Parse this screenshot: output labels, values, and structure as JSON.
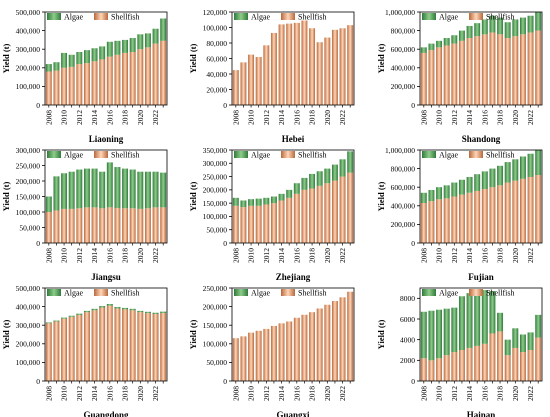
{
  "colors": {
    "algae": "#4f9a59",
    "shellfish": "#e9a37a",
    "algae_grad": [
      "#2f7a3c",
      "#8fcc8a"
    ],
    "shellfish_grad": [
      "#b8693c",
      "#ffd6b8"
    ]
  },
  "chart_data": [
    {
      "type": "bar",
      "stacked": true,
      "title": "Liaoning",
      "xlabel": "",
      "ylabel": "Yield (t)",
      "categories": [
        "2008",
        "2009",
        "2010",
        "2011",
        "2012",
        "2013",
        "2014",
        "2015",
        "2016",
        "2017",
        "2018",
        "2019",
        "2020",
        "2021",
        "2022",
        "2023"
      ],
      "x_tick_labels": [
        "2008",
        "2010",
        "2012",
        "2014",
        "2016",
        "2018",
        "2020",
        "2022"
      ],
      "y_ticks": [
        0,
        100000,
        200000,
        300000,
        400000,
        500000
      ],
      "y_tick_labels": [
        "0",
        "100,000",
        "200,000",
        "300,000",
        "400,000",
        "500,000"
      ],
      "ylim": [
        0,
        500000
      ],
      "legend": "top-left",
      "grid": false,
      "series": [
        {
          "name": "Shellfish",
          "values": [
            180000,
            185000,
            200000,
            205000,
            220000,
            225000,
            235000,
            245000,
            260000,
            270000,
            280000,
            285000,
            300000,
            310000,
            330000,
            345000
          ]
        },
        {
          "name": "Algae",
          "values": [
            40000,
            45000,
            80000,
            65000,
            65000,
            70000,
            70000,
            70000,
            80000,
            75000,
            70000,
            75000,
            80000,
            75000,
            80000,
            120000
          ]
        }
      ]
    },
    {
      "type": "bar",
      "stacked": true,
      "title": "Hebei",
      "xlabel": "",
      "ylabel": "Yield (t)",
      "categories": [
        "2008",
        "2009",
        "2010",
        "2011",
        "2012",
        "2013",
        "2014",
        "2015",
        "2016",
        "2017",
        "2018",
        "2019",
        "2020",
        "2021",
        "2022",
        "2023"
      ],
      "x_tick_labels": [
        "2008",
        "2010",
        "2012",
        "2014",
        "2016",
        "2018",
        "2020",
        "2022"
      ],
      "y_ticks": [
        0,
        20000,
        40000,
        60000,
        80000,
        100000,
        120000
      ],
      "y_tick_labels": [
        "0",
        "20,000",
        "40,000",
        "60,000",
        "80,000",
        "100,000",
        "120,000"
      ],
      "ylim": [
        0,
        120000
      ],
      "legend": "top-left",
      "grid": false,
      "series": [
        {
          "name": "Shellfish",
          "values": [
            45000,
            55000,
            65000,
            62000,
            77000,
            93000,
            104000,
            105000,
            106000,
            109000,
            99000,
            81000,
            87000,
            97000,
            99000,
            103000
          ]
        },
        {
          "name": "Algae",
          "values": [
            0,
            0,
            0,
            0,
            0,
            0,
            0,
            0,
            0,
            0,
            0,
            0,
            0,
            0,
            0,
            0
          ]
        }
      ]
    },
    {
      "type": "bar",
      "stacked": true,
      "title": "Shandong",
      "xlabel": "",
      "ylabel": "Yield (t)",
      "categories": [
        "2008",
        "2009",
        "2010",
        "2011",
        "2012",
        "2013",
        "2014",
        "2015",
        "2016",
        "2017",
        "2018",
        "2019",
        "2020",
        "2021",
        "2022",
        "2023"
      ],
      "x_tick_labels": [
        "2008",
        "2010",
        "2012",
        "2014",
        "2016",
        "2018",
        "2020",
        "2022"
      ],
      "y_ticks": [
        0,
        200000,
        400000,
        600000,
        800000,
        1000000
      ],
      "y_tick_labels": [
        "0",
        "200,000",
        "400,000",
        "600,000",
        "800,000",
        "1,000,000"
      ],
      "ylim": [
        0,
        1000000
      ],
      "legend": "top-left",
      "grid": false,
      "series": [
        {
          "name": "Shellfish",
          "values": [
            560000,
            590000,
            620000,
            640000,
            660000,
            690000,
            720000,
            740000,
            760000,
            780000,
            760000,
            720000,
            740000,
            760000,
            780000,
            800000
          ]
        },
        {
          "name": "Algae",
          "values": [
            60000,
            70000,
            70000,
            80000,
            90000,
            110000,
            130000,
            140000,
            160000,
            180000,
            180000,
            170000,
            180000,
            180000,
            180000,
            200000
          ]
        }
      ]
    },
    {
      "type": "bar",
      "stacked": true,
      "title": "Jiangsu",
      "xlabel": "",
      "ylabel": "Yield (t)",
      "categories": [
        "2008",
        "2009",
        "2010",
        "2011",
        "2012",
        "2013",
        "2014",
        "2015",
        "2016",
        "2017",
        "2018",
        "2019",
        "2020",
        "2021",
        "2022",
        "2023"
      ],
      "x_tick_labels": [
        "2008",
        "2010",
        "2012",
        "2014",
        "2016",
        "2018",
        "2020",
        "2022"
      ],
      "y_ticks": [
        0,
        50000,
        100000,
        150000,
        200000,
        250000,
        300000
      ],
      "y_tick_labels": [
        "0",
        "50,000",
        "100,000",
        "150,000",
        "200,000",
        "250,000",
        "300,000"
      ],
      "ylim": [
        0,
        300000
      ],
      "legend": "top-left",
      "grid": false,
      "series": [
        {
          "name": "Shellfish",
          "values": [
            100000,
            105000,
            110000,
            110000,
            112000,
            115000,
            115000,
            112000,
            115000,
            113000,
            112000,
            112000,
            110000,
            112000,
            115000,
            115000
          ]
        },
        {
          "name": "Algae",
          "values": [
            50000,
            110000,
            115000,
            120000,
            125000,
            125000,
            125000,
            118000,
            145000,
            132000,
            128000,
            125000,
            120000,
            118000,
            115000,
            112000
          ]
        }
      ]
    },
    {
      "type": "bar",
      "stacked": true,
      "title": "Zhejiang",
      "xlabel": "",
      "ylabel": "Yield (t)",
      "categories": [
        "2008",
        "2009",
        "2010",
        "2011",
        "2012",
        "2013",
        "2014",
        "2015",
        "2016",
        "2017",
        "2018",
        "2019",
        "2020",
        "2021",
        "2022",
        "2023"
      ],
      "x_tick_labels": [
        "2008",
        "2010",
        "2012",
        "2014",
        "2016",
        "2018",
        "2020",
        "2022"
      ],
      "y_ticks": [
        0,
        50000,
        100000,
        150000,
        200000,
        250000,
        300000,
        350000
      ],
      "y_tick_labels": [
        "0",
        "50,000",
        "100,000",
        "150,000",
        "200,000",
        "250,000",
        "300,000",
        "350,000"
      ],
      "ylim": [
        0,
        350000
      ],
      "legend": "top-left",
      "grid": false,
      "series": [
        {
          "name": "Shellfish",
          "values": [
            140000,
            135000,
            140000,
            140000,
            145000,
            150000,
            160000,
            170000,
            185000,
            200000,
            205000,
            215000,
            225000,
            235000,
            250000,
            265000
          ]
        },
        {
          "name": "Algae",
          "values": [
            30000,
            25000,
            25000,
            27000,
            25000,
            25000,
            25000,
            30000,
            40000,
            45000,
            55000,
            55000,
            55000,
            60000,
            65000,
            80000
          ]
        }
      ]
    },
    {
      "type": "bar",
      "stacked": true,
      "title": "Fujian",
      "xlabel": "",
      "ylabel": "Yield (t)",
      "categories": [
        "2008",
        "2009",
        "2010",
        "2011",
        "2012",
        "2013",
        "2014",
        "2015",
        "2016",
        "2017",
        "2018",
        "2019",
        "2020",
        "2021",
        "2022",
        "2023"
      ],
      "x_tick_labels": [
        "2008",
        "2010",
        "2012",
        "2014",
        "2016",
        "2018",
        "2020",
        "2022"
      ],
      "y_ticks": [
        0,
        200000,
        400000,
        600000,
        800000,
        1000000
      ],
      "y_tick_labels": [
        "0",
        "200,000",
        "400,000",
        "600,000",
        "800,000",
        "1,000,000"
      ],
      "ylim": [
        0,
        1000000
      ],
      "legend": "top-left",
      "grid": false,
      "series": [
        {
          "name": "Shellfish",
          "values": [
            430000,
            450000,
            470000,
            480000,
            500000,
            520000,
            540000,
            560000,
            580000,
            600000,
            620000,
            650000,
            670000,
            690000,
            710000,
            730000
          ]
        },
        {
          "name": "Algae",
          "values": [
            110000,
            120000,
            130000,
            140000,
            150000,
            160000,
            170000,
            180000,
            190000,
            200000,
            210000,
            220000,
            230000,
            240000,
            250000,
            270000
          ]
        }
      ]
    },
    {
      "type": "bar",
      "stacked": true,
      "title": "Guangdong",
      "xlabel": "",
      "ylabel": "Yield (t)",
      "categories": [
        "2008",
        "2009",
        "2010",
        "2011",
        "2012",
        "2013",
        "2014",
        "2015",
        "2016",
        "2017",
        "2018",
        "2019",
        "2020",
        "2021",
        "2022",
        "2023"
      ],
      "x_tick_labels": [
        "2008",
        "2010",
        "2012",
        "2014",
        "2016",
        "2018",
        "2020",
        "2022"
      ],
      "y_ticks": [
        0,
        100000,
        200000,
        300000,
        400000,
        500000
      ],
      "y_tick_labels": [
        "0",
        "100,000",
        "200,000",
        "300,000",
        "400,000",
        "500,000"
      ],
      "ylim": [
        0,
        500000
      ],
      "legend": "top-left",
      "grid": false,
      "series": [
        {
          "name": "Shellfish",
          "values": [
            310000,
            320000,
            335000,
            345000,
            355000,
            370000,
            380000,
            395000,
            405000,
            390000,
            385000,
            380000,
            370000,
            365000,
            360000,
            365000
          ]
        },
        {
          "name": "Algae",
          "values": [
            5000,
            5000,
            6000,
            6000,
            7000,
            7000,
            8000,
            8000,
            9000,
            8000,
            8000,
            8000,
            7000,
            7000,
            7000,
            8000
          ]
        }
      ]
    },
    {
      "type": "bar",
      "stacked": true,
      "title": "Guangxi",
      "xlabel": "",
      "ylabel": "Yield (t)",
      "categories": [
        "2008",
        "2009",
        "2010",
        "2011",
        "2012",
        "2013",
        "2014",
        "2015",
        "2016",
        "2017",
        "2018",
        "2019",
        "2020",
        "2021",
        "2022",
        "2023"
      ],
      "x_tick_labels": [
        "2008",
        "2010",
        "2012",
        "2014",
        "2016",
        "2018",
        "2020",
        "2022"
      ],
      "y_ticks": [
        0,
        50000,
        100000,
        150000,
        200000,
        250000
      ],
      "y_tick_labels": [
        "0",
        "50,000",
        "100,000",
        "150,000",
        "200,000",
        "250,000"
      ],
      "ylim": [
        0,
        250000
      ],
      "legend": "top-left",
      "grid": false,
      "series": [
        {
          "name": "Shellfish",
          "values": [
            115000,
            120000,
            130000,
            135000,
            140000,
            148000,
            155000,
            160000,
            170000,
            178000,
            185000,
            195000,
            205000,
            215000,
            225000,
            240000
          ]
        },
        {
          "name": "Algae",
          "values": [
            0,
            0,
            0,
            0,
            0,
            0,
            0,
            0,
            0,
            0,
            0,
            0,
            0,
            0,
            0,
            0
          ]
        }
      ]
    },
    {
      "type": "bar",
      "stacked": true,
      "title": "Hainan",
      "xlabel": "",
      "ylabel": "Yield (t)",
      "categories": [
        "2008",
        "2009",
        "2010",
        "2011",
        "2012",
        "2013",
        "2014",
        "2015",
        "2016",
        "2017",
        "2018",
        "2019",
        "2020",
        "2021",
        "2022",
        "2023"
      ],
      "x_tick_labels": [
        "2008",
        "2010",
        "2012",
        "2014",
        "2016",
        "2018",
        "2020",
        "2022"
      ],
      "y_ticks": [
        0,
        2000,
        4000,
        6000,
        8000
      ],
      "y_tick_labels": [
        "0",
        "2000",
        "4000",
        "6000",
        "8000"
      ],
      "ylim": [
        0,
        9000
      ],
      "legend": "top-left",
      "grid": false,
      "series": [
        {
          "name": "Shellfish",
          "values": [
            2200,
            2000,
            2200,
            2500,
            2800,
            3000,
            3200,
            3400,
            3600,
            4600,
            4800,
            2500,
            3200,
            2800,
            3000,
            4200
          ]
        },
        {
          "name": "Algae",
          "values": [
            4500,
            4800,
            4700,
            4500,
            4300,
            5200,
            5300,
            5100,
            5200,
            4100,
            1800,
            1500,
            1900,
            1700,
            1700,
            2200
          ]
        }
      ]
    }
  ]
}
